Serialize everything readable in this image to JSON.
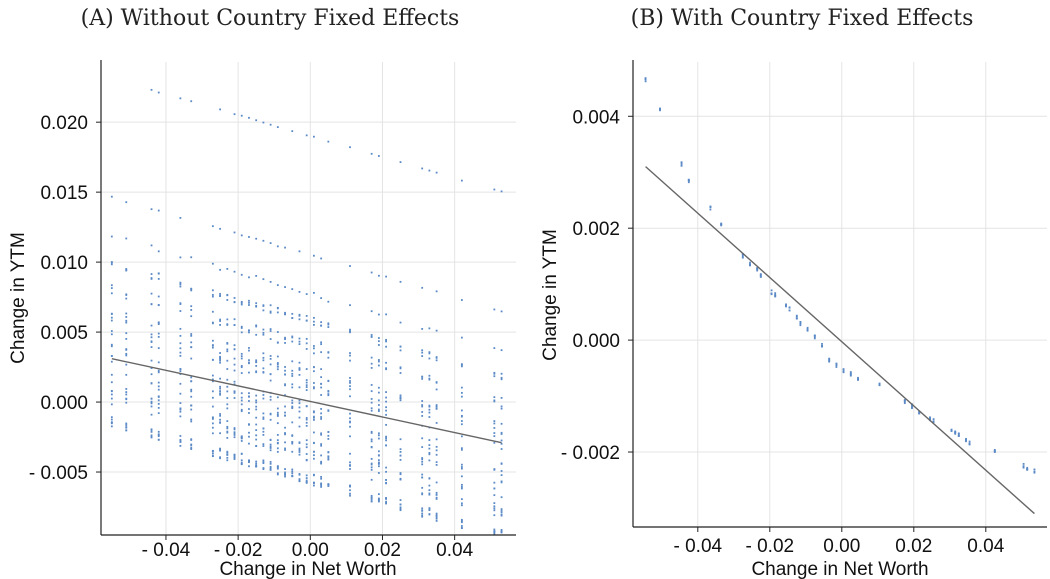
{
  "chart_data": [
    {
      "type": "scatter",
      "title": "(A) Without Country Fixed Effects",
      "xlabel": "Change in Net Worth",
      "ylabel": "Change in YTM",
      "xlim": [
        -0.058,
        0.057
      ],
      "ylim": [
        -0.0095,
        0.0243
      ],
      "xticks": [
        -0.04,
        -0.02,
        0.0,
        0.02,
        0.04
      ],
      "xtick_labels": [
        "- 0.04",
        "- 0.02",
        "0.00",
        "0.02",
        "0.04"
      ],
      "yticks": [
        -0.005,
        0.0,
        0.005,
        0.01,
        0.015,
        0.02
      ],
      "ytick_labels": [
        "- 0.005",
        "0.000",
        "0.005",
        "0.010",
        "0.015",
        "0.020"
      ],
      "grid": true,
      "point_color": "#5b8ac6",
      "line_color": "#666666",
      "fit_line": {
        "x": [
          -0.055,
          0.053
        ],
        "y": [
          0.0031,
          -0.0029
        ]
      },
      "bands": [
        {
          "slope": -0.075,
          "intercept": 0.019,
          "jitter": 4e-05
        },
        {
          "slope": -0.075,
          "intercept": 0.0105,
          "jitter": 6e-05
        },
        {
          "slope": -0.075,
          "intercept": 0.0077,
          "jitter": 0.0002
        },
        {
          "slope": -0.075,
          "intercept": 0.0058,
          "jitter": 0.0003
        },
        {
          "slope": -0.075,
          "intercept": 0.004,
          "jitter": 0.0005
        },
        {
          "slope": -0.075,
          "intercept": 0.0016,
          "jitter": 0.001
        },
        {
          "slope": -0.075,
          "intercept": -0.0012,
          "jitter": 0.0012
        },
        {
          "slope": -0.075,
          "intercept": -0.0035,
          "jitter": 0.0008
        },
        {
          "slope": -0.075,
          "intercept": -0.0055,
          "jitter": 0.0004
        }
      ],
      "x_positions": [
        -0.055,
        -0.051,
        -0.044,
        -0.042,
        -0.036,
        -0.033,
        -0.027,
        -0.025,
        -0.023,
        -0.021,
        -0.019,
        -0.017,
        -0.015,
        -0.013,
        -0.011,
        -0.009,
        -0.007,
        -0.005,
        -0.003,
        -0.001,
        0.001,
        0.003,
        0.005,
        0.011,
        0.017,
        0.019,
        0.021,
        0.025,
        0.031,
        0.033,
        0.035,
        0.042,
        0.051,
        0.053
      ]
    },
    {
      "type": "scatter",
      "title": "(B) With Country Fixed Effects",
      "xlabel": "Change in Net Worth",
      "ylabel": "Change in YTM",
      "xlim": [
        -0.058,
        0.057
      ],
      "ylim": [
        -0.00334,
        0.00497
      ],
      "xticks": [
        -0.04,
        -0.02,
        0.0,
        0.02,
        0.04
      ],
      "xtick_labels": [
        "- 0.04",
        "- 0.02",
        "0.00",
        "0.02",
        "0.04"
      ],
      "yticks": [
        -0.002,
        0.0,
        0.002,
        0.004
      ],
      "ytick_labels": [
        "- 0.002",
        "0.000",
        "0.002",
        "0.004"
      ],
      "grid": true,
      "point_color": "#5b8ac6",
      "line_color": "#666666",
      "fit_line": {
        "x": [
          -0.0545,
          0.0535
        ],
        "y": [
          0.0031,
          -0.0031
        ]
      },
      "points_x": [
        -0.0545,
        -0.0505,
        -0.0445,
        -0.0425,
        -0.0365,
        -0.0335,
        -0.0275,
        -0.0255,
        -0.0235,
        -0.0225,
        -0.0195,
        -0.0185,
        -0.0155,
        -0.0145,
        -0.0125,
        -0.0115,
        -0.0095,
        -0.0075,
        -0.0055,
        -0.0035,
        -0.0015,
        0.0005,
        0.0025,
        0.0045,
        0.0105,
        0.0175,
        0.0195,
        0.0215,
        0.0245,
        0.0255,
        0.0305,
        0.0315,
        0.0325,
        0.0345,
        0.0355,
        0.0425,
        0.0505,
        0.0515,
        0.0535
      ],
      "points_y": [
        0.00465,
        0.0041,
        0.00315,
        0.00285,
        0.00235,
        0.00205,
        0.0015,
        0.00135,
        0.00125,
        0.00115,
        0.00085,
        0.0008,
        0.0006,
        0.00055,
        0.0004,
        0.0003,
        0.0002,
        5e-05,
        -0.0001,
        -0.00035,
        -0.00045,
        -0.00055,
        -0.0006,
        -0.0007,
        -0.0008,
        -0.0011,
        -0.00118,
        -0.00128,
        -0.0014,
        -0.00145,
        -0.0016,
        -0.00165,
        -0.0017,
        -0.0018,
        -0.00185,
        -0.002,
        -0.00225,
        -0.0023,
        -0.00235
      ]
    }
  ]
}
